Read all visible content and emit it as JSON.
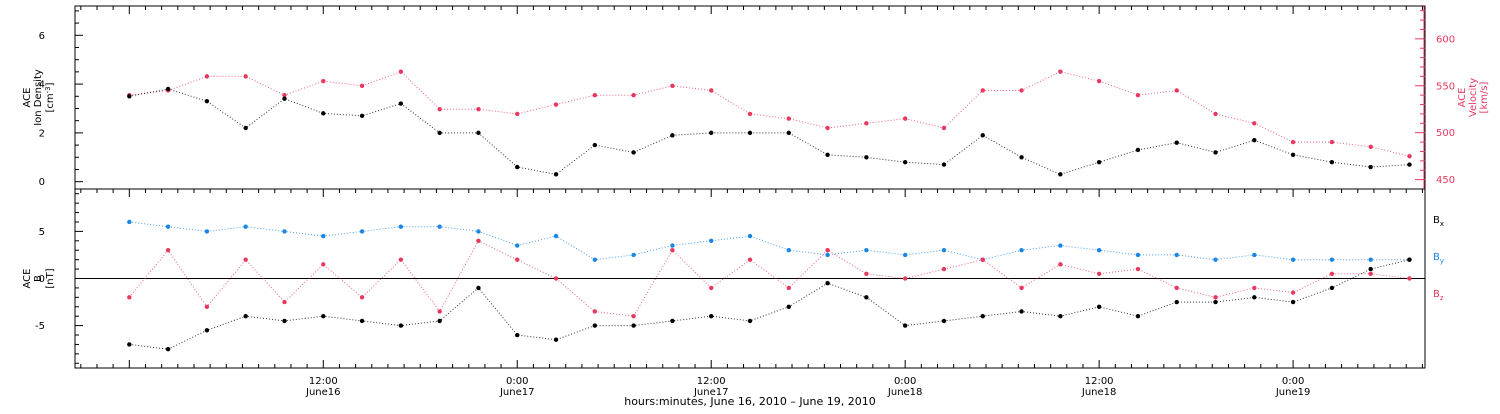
{
  "chart_data": [
    {
      "type": "scatter",
      "panel": "top",
      "ylabel_left": [
        "ACE",
        "Ion Density",
        "[cm",
        "-3",
        "]"
      ],
      "ylabel_right": [
        "ACE",
        "Velocity",
        "[km/s]"
      ],
      "ylim_left": [
        -0.3,
        7.2
      ],
      "ylim_right": [
        440,
        635
      ],
      "yticks_left": [
        0,
        2,
        4,
        6
      ],
      "yticks_right": [
        450,
        500,
        550,
        600
      ],
      "series": [
        {
          "axis": "left",
          "color": "#000000",
          "x": [
            0.0,
            0.1,
            0.2,
            0.3,
            0.4,
            0.5,
            0.6,
            0.7,
            0.8,
            0.9,
            1.0,
            1.1,
            1.2,
            1.3,
            1.4,
            1.5,
            1.6,
            1.7,
            1.8,
            1.9,
            2.0,
            2.1,
            2.2,
            2.3,
            2.4,
            2.5,
            2.6,
            2.7,
            2.8,
            2.9,
            3.0,
            3.1,
            3.2,
            3.3
          ],
          "y": [
            3.5,
            3.8,
            3.3,
            2.2,
            3.4,
            2.8,
            2.7,
            3.2,
            2.0,
            2.0,
            0.6,
            0.3,
            1.5,
            1.2,
            1.9,
            2.0,
            2.0,
            2.0,
            1.1,
            1.0,
            0.8,
            0.7,
            1.9,
            1.0,
            0.3,
            0.8,
            1.3,
            1.6,
            1.2,
            1.7,
            1.1,
            0.8,
            0.6,
            0.7
          ]
        },
        {
          "axis": "right",
          "color": "#e8385f",
          "x": [
            0.0,
            0.1,
            0.2,
            0.3,
            0.4,
            0.5,
            0.6,
            0.7,
            0.8,
            0.9,
            1.0,
            1.1,
            1.2,
            1.3,
            1.4,
            1.5,
            1.6,
            1.7,
            1.8,
            1.9,
            2.0,
            2.1,
            2.2,
            2.3,
            2.4,
            2.5,
            2.6,
            2.7,
            2.8,
            2.9,
            3.0,
            3.1,
            3.2,
            3.3
          ],
          "y": [
            540,
            545,
            560,
            560,
            540,
            555,
            550,
            565,
            525,
            525,
            520,
            530,
            540,
            540,
            550,
            545,
            520,
            515,
            505,
            510,
            515,
            505,
            545,
            545,
            565,
            555,
            540,
            545,
            520,
            510,
            490,
            490,
            485,
            475
          ]
        }
      ]
    },
    {
      "type": "scatter",
      "panel": "bottom",
      "ylabel_left": [
        "ACE",
        "B",
        "[nT]"
      ],
      "ylim": [
        -9.5,
        9.5
      ],
      "yticks": [
        -5,
        0,
        5
      ],
      "legend": [
        {
          "main": "B",
          "sub": "x",
          "color": "#000000"
        },
        {
          "main": "B",
          "sub": "y",
          "color": "#1a86e8"
        },
        {
          "main": "B",
          "sub": "z",
          "color": "#e8385f"
        }
      ],
      "series": [
        {
          "color": "#000000",
          "x": [
            0.0,
            0.1,
            0.2,
            0.3,
            0.4,
            0.5,
            0.6,
            0.7,
            0.8,
            0.9,
            1.0,
            1.1,
            1.2,
            1.3,
            1.4,
            1.5,
            1.6,
            1.7,
            1.8,
            1.9,
            2.0,
            2.1,
            2.2,
            2.3,
            2.4,
            2.5,
            2.6,
            2.7,
            2.8,
            2.9,
            3.0,
            3.1,
            3.2,
            3.3
          ],
          "y": [
            -7.0,
            -7.5,
            -5.5,
            -4.0,
            -4.5,
            -4.0,
            -4.5,
            -5.0,
            -4.5,
            -1.0,
            -6.0,
            -6.5,
            -5.0,
            -5.0,
            -4.5,
            -4.0,
            -4.5,
            -3.0,
            -0.5,
            -2.0,
            -5.0,
            -4.5,
            -4.0,
            -3.5,
            -4.0,
            -3.0,
            -4.0,
            -2.5,
            -2.5,
            -2.0,
            -2.5,
            -1.0,
            1.0,
            2.0
          ]
        },
        {
          "color": "#1a86e8",
          "x": [
            0.0,
            0.1,
            0.2,
            0.3,
            0.4,
            0.5,
            0.6,
            0.7,
            0.8,
            0.9,
            1.0,
            1.1,
            1.2,
            1.3,
            1.4,
            1.5,
            1.6,
            1.7,
            1.8,
            1.9,
            2.0,
            2.1,
            2.2,
            2.3,
            2.4,
            2.5,
            2.6,
            2.7,
            2.8,
            2.9,
            3.0,
            3.1,
            3.2,
            3.3
          ],
          "y": [
            6.0,
            5.5,
            5.0,
            5.5,
            5.0,
            4.5,
            5.0,
            5.5,
            5.5,
            5.0,
            3.5,
            4.5,
            2.0,
            2.5,
            3.5,
            4.0,
            4.5,
            3.0,
            2.5,
            3.0,
            2.5,
            3.0,
            2.0,
            3.0,
            3.5,
            3.0,
            2.5,
            2.5,
            2.0,
            2.5,
            2.0,
            2.0,
            2.0,
            2.0
          ]
        },
        {
          "color": "#e8385f",
          "x": [
            0.0,
            0.1,
            0.2,
            0.3,
            0.4,
            0.5,
            0.6,
            0.7,
            0.8,
            0.9,
            1.0,
            1.1,
            1.2,
            1.3,
            1.4,
            1.5,
            1.6,
            1.7,
            1.8,
            1.9,
            2.0,
            2.1,
            2.2,
            2.3,
            2.4,
            2.5,
            2.6,
            2.7,
            2.8,
            2.9,
            3.0,
            3.1,
            3.2,
            3.3
          ],
          "y": [
            -2.0,
            3.0,
            -3.0,
            2.0,
            -2.5,
            1.5,
            -2.0,
            2.0,
            -3.5,
            4.0,
            2.0,
            0.0,
            -3.5,
            -4.0,
            3.0,
            -1.0,
            2.0,
            -1.0,
            3.0,
            0.5,
            0.0,
            1.0,
            2.0,
            -1.0,
            1.5,
            0.5,
            1.0,
            -1.0,
            -2.0,
            -1.0,
            -1.5,
            0.5,
            0.5,
            0.0
          ]
        }
      ]
    }
  ],
  "x_axis": {
    "xlim": [
      -0.14,
      3.34
    ],
    "ticks": [
      {
        "x": 0.5,
        "time": "12:00",
        "date": "June16"
      },
      {
        "x": 1.0,
        "time": "0:00",
        "date": "June17"
      },
      {
        "x": 1.5,
        "time": "12:00",
        "date": "June17"
      },
      {
        "x": 2.0,
        "time": "0:00",
        "date": "June18"
      },
      {
        "x": 2.5,
        "time": "12:00",
        "date": "June18"
      },
      {
        "x": 3.0,
        "time": "0:00",
        "date": "June19"
      }
    ],
    "xlabel": "hours:minutes, June 16, 2010 – June 19, 2010"
  },
  "colors": {
    "black": "#000000",
    "blue": "#1a86e8",
    "red": "#e8385f"
  }
}
